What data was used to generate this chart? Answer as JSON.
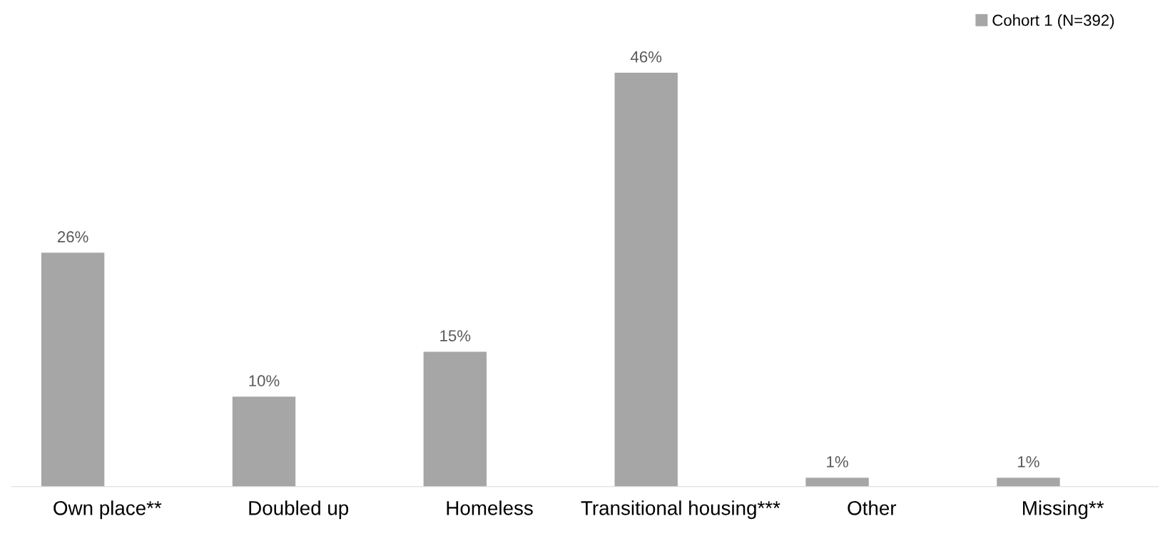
{
  "chart_data": {
    "type": "bar",
    "categories": [
      "Own place**",
      "Doubled up",
      "Homeless",
      "Transitional housing***",
      "Other",
      "Missing**"
    ],
    "series": [
      {
        "name": "Cohort 1 (N=392)",
        "color": "#a6a6a6",
        "values": [
          26,
          10,
          15,
          46,
          1,
          1
        ],
        "value_labels": [
          "26%",
          "10%",
          "15%",
          "46%",
          "1%",
          "1%"
        ]
      }
    ],
    "tick_labels": "x",
    "legend": "top right"
  }
}
